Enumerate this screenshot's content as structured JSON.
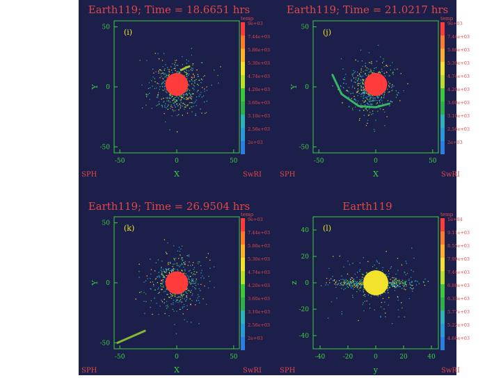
{
  "figure": {
    "background": "#1c1f4a",
    "axis_color": "#3cd23c",
    "title_color": "#e04848",
    "text_color": "#e04848"
  },
  "chart_data": [
    {
      "type": "scatter",
      "label": "(i)",
      "title": "Earth119; Time = 18.6651 hrs",
      "xlabel": "X",
      "ylabel": "Y",
      "xlim": [
        -55,
        55
      ],
      "ylim": [
        -55,
        55
      ],
      "xticks": [
        "-50",
        "0",
        "50"
      ],
      "yticks": [
        "50",
        "0",
        "-50"
      ],
      "footer_left": "SPH",
      "footer_right": "SwRI",
      "colorbar": {
        "title": "temp",
        "labels": [
          "9e+03",
          "7.44e+03",
          "5.86e+03",
          "5.30e+03",
          "4.74e+03",
          "4.20e+03",
          "3.60e+03",
          "3.10e+03",
          "2.56e+03",
          "2e+03"
        ]
      },
      "core": {
        "x": 0,
        "y": 2,
        "r": 10,
        "color": "#ff3b3b"
      },
      "clouds": [
        {
          "x": 0,
          "y": 0,
          "spread": 20,
          "n": 700,
          "seed": 11
        }
      ],
      "arcs": [
        {
          "points": [
            [
              4,
              14
            ],
            [
              8,
              16
            ],
            [
              11,
              17
            ]
          ],
          "color": "#c8e628"
        }
      ]
    },
    {
      "type": "scatter",
      "label": "(j)",
      "title": "Earth119; Time = 21.0217 hrs",
      "xlabel": "X",
      "ylabel": "Y",
      "xlim": [
        -55,
        55
      ],
      "ylim": [
        -55,
        55
      ],
      "xticks": [
        "-50",
        "0",
        "50"
      ],
      "yticks": [
        "50",
        "0",
        "-50"
      ],
      "footer_left": "SPH",
      "footer_right": "SwRI",
      "colorbar": {
        "title": "temp",
        "labels": [
          "9e+03",
          "7.44e+03",
          "5.86e+03",
          "5.30e+03",
          "4.74e+03",
          "4.20e+03",
          "3.60e+03",
          "3.10e+03",
          "2.56e+03",
          "2e+03"
        ]
      },
      "core": {
        "x": 0,
        "y": 2,
        "r": 10,
        "color": "#ff3b3b"
      },
      "clouds": [
        {
          "x": -5,
          "y": 0,
          "spread": 20,
          "n": 650,
          "seed": 23
        }
      ],
      "arcs": [
        {
          "points": [
            [
              -38,
              10
            ],
            [
              -30,
              -6
            ],
            [
              -15,
              -16
            ],
            [
              0,
              -17
            ],
            [
              12,
              -14
            ]
          ],
          "color": "#39d06a"
        }
      ]
    },
    {
      "type": "scatter",
      "label": "(k)",
      "title": "Earth119; Time = 26.9504 hrs",
      "xlabel": "X",
      "ylabel": "Y",
      "xlim": [
        -55,
        55
      ],
      "ylim": [
        -55,
        55
      ],
      "xticks": [
        "-50",
        "0",
        "50"
      ],
      "yticks": [
        "50",
        "0",
        "-50"
      ],
      "footer_left": "SPH",
      "footer_right": "SwRI",
      "colorbar": {
        "title": "temp",
        "labels": [
          "9e+03",
          "7.44e+03",
          "5.86e+03",
          "5.30e+03",
          "4.74e+03",
          "4.20e+03",
          "3.60e+03",
          "3.10e+03",
          "2.56e+03",
          "2e+03"
        ]
      },
      "core": {
        "x": 0,
        "y": 0,
        "r": 10,
        "color": "#ff3b3b"
      },
      "clouds": [
        {
          "x": 0,
          "y": 0,
          "spread": 20,
          "n": 750,
          "seed": 37
        }
      ],
      "arcs": [
        {
          "points": [
            [
              -52,
              -50
            ],
            [
              -40,
              -45
            ],
            [
              -28,
              -40
            ]
          ],
          "color": "#9ad42a"
        }
      ]
    },
    {
      "type": "scatter",
      "label": "(l)",
      "title": "Earth119",
      "xlabel": "y",
      "ylabel": "z",
      "xlim": [
        -45,
        45
      ],
      "ylim": [
        -50,
        50
      ],
      "xticks": [
        "-40",
        "-20",
        "0",
        "20",
        "40"
      ],
      "yticks": [
        "40",
        "20",
        "0",
        "-20",
        "-40"
      ],
      "footer_left": "SPH",
      "footer_right": "SwRI",
      "colorbar": {
        "title": "temp",
        "labels": [
          "1e+04",
          "9.11e+03",
          "8.55e+03",
          "7.99e+03",
          "7.44e+03",
          "6.88e+03",
          "6.33e+03",
          "5.77e+03",
          "5.22e+03",
          "4.66e+03"
        ]
      },
      "core": {
        "x": 0,
        "y": 0,
        "r": 9,
        "color": "#f2e22b"
      },
      "clouds": [
        {
          "x": 0,
          "y": 0,
          "spread": 4,
          "n": 600,
          "seed": 51,
          "flat": true
        }
      ],
      "arcs": []
    }
  ]
}
